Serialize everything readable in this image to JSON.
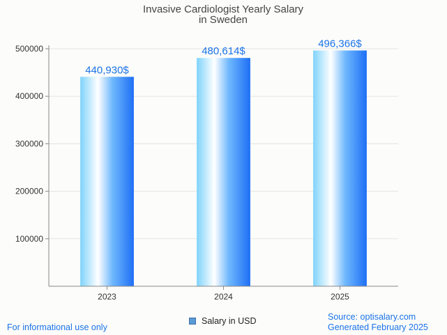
{
  "chart_data": {
    "type": "bar",
    "title": [
      "Invasive Cardiologist Yearly Salary",
      "in Sweden"
    ],
    "categories": [
      "2023",
      "2024",
      "2025"
    ],
    "series": [
      {
        "name": "Salary in USD",
        "values": [
          440930,
          480614,
          496366
        ]
      }
    ],
    "data_labels": [
      "440,930$",
      "480,614$",
      "496,366$"
    ],
    "yticks": [
      100000,
      200000,
      300000,
      400000,
      500000
    ],
    "ylim": [
      0,
      500000
    ],
    "grid": true,
    "legend": "bottom-center"
  },
  "footer": {
    "left": "For informational use only",
    "source": "Source: optisalary.com",
    "generated": "Generated February 2025"
  },
  "colors": {
    "label": "#1a73e8",
    "bar_light": "#ffffff",
    "bar_dark": "#1e6ff5"
  }
}
